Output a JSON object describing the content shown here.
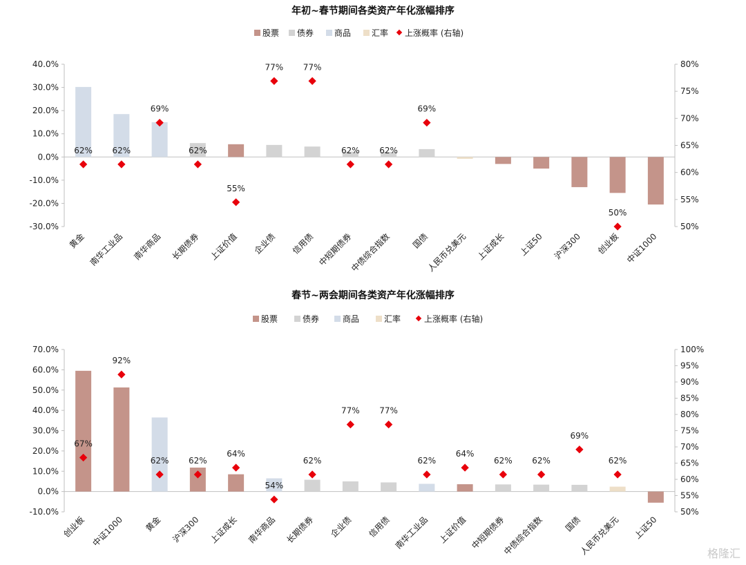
{
  "colors": {
    "股票": "#c4948a",
    "债券": "#d3d3d3",
    "商品": "#d3dce8",
    "汇率": "#eedfc8",
    "概率": "#e8000b"
  },
  "watermark": "格隆汇",
  "chart_data": [
    {
      "type": "bar",
      "title": "年初~春节期间各类资产年化涨幅排序",
      "legend": {
        "placement": "top",
        "items": [
          {
            "name": "股票",
            "kind": "bar"
          },
          {
            "name": "债券",
            "kind": "bar"
          },
          {
            "name": "商品",
            "kind": "bar"
          },
          {
            "name": "汇率",
            "kind": "bar"
          },
          {
            "name": "上涨概率 (右轴)",
            "kind": "point"
          }
        ]
      },
      "categories": [
        "黄金",
        "南华工业品",
        "南华商品",
        "长期债券",
        "上证价值",
        "企业债",
        "信用债",
        "中短期债券",
        "中债综合指数",
        "国债",
        "人民币兑美元",
        "上证成长",
        "上证50",
        "沪深300",
        "创业板",
        "中证1000"
      ],
      "asset_class": [
        "商品",
        "商品",
        "商品",
        "债券",
        "股票",
        "债券",
        "债券",
        "债券",
        "债券",
        "债券",
        "汇率",
        "股票",
        "股票",
        "股票",
        "股票",
        "股票"
      ],
      "values": [
        30.2,
        18.5,
        15.0,
        6.0,
        5.5,
        5.2,
        4.5,
        2.3,
        2.2,
        3.4,
        -0.8,
        -3.0,
        -5.0,
        -13.0,
        -15.5,
        -20.5
      ],
      "prob": [
        62,
        62,
        69,
        62,
        55,
        77,
        77,
        62,
        62,
        69,
        null,
        null,
        null,
        null,
        50,
        null
      ],
      "prob_labels": [
        "62%",
        "62%",
        "69%",
        "62%",
        "55%",
        "77%",
        "77%",
        "62%",
        "62%",
        "69%",
        "",
        "",
        "",
        "",
        "50%",
        ""
      ],
      "prob_plot": [
        61.5,
        61.5,
        69.2,
        61.5,
        54.5,
        76.9,
        76.9,
        61.5,
        61.5,
        69.2,
        null,
        null,
        null,
        null,
        50.0,
        null
      ],
      "y_left": {
        "min": -30,
        "max": 40,
        "step": 10,
        "ticks": [
          "-30.0%",
          "-20.0%",
          "-10.0%",
          "0.0%",
          "10.0%",
          "20.0%",
          "30.0%",
          "40.0%"
        ]
      },
      "y_right": {
        "min": 50,
        "max": 80,
        "step": 5,
        "ticks": [
          "50%",
          "55%",
          "60%",
          "65%",
          "70%",
          "75%",
          "80%"
        ]
      },
      "grid": false
    },
    {
      "type": "bar",
      "title": "春节~两会期间各类资产年化涨幅排序",
      "legend": {
        "placement": "top",
        "items": [
          {
            "name": "股票",
            "kind": "bar"
          },
          {
            "name": "债券",
            "kind": "bar"
          },
          {
            "name": "商品",
            "kind": "bar"
          },
          {
            "name": "汇率",
            "kind": "bar"
          },
          {
            "name": "上涨概率 (右轴)",
            "kind": "point"
          }
        ]
      },
      "categories": [
        "创业板",
        "中证1000",
        "黄金",
        "沪深300",
        "上证成长",
        "南华商品",
        "长期债券",
        "企业债",
        "信用债",
        "南华工业品",
        "上证价值",
        "中短期债券",
        "中债综合指数",
        "国债",
        "人民币兑美元",
        "上证50"
      ],
      "asset_class": [
        "股票",
        "股票",
        "商品",
        "股票",
        "股票",
        "商品",
        "债券",
        "债券",
        "债券",
        "商品",
        "股票",
        "债券",
        "债券",
        "债券",
        "汇率",
        "股票"
      ],
      "values": [
        59.5,
        51.3,
        36.5,
        11.8,
        8.5,
        6.5,
        5.8,
        5.0,
        4.5,
        3.8,
        3.6,
        3.5,
        3.4,
        3.3,
        2.4,
        -5.5
      ],
      "prob": [
        67,
        92,
        62,
        62,
        64,
        54,
        62,
        77,
        77,
        62,
        64,
        62,
        62,
        69,
        62,
        null
      ],
      "prob_labels": [
        "67%",
        "92%",
        "62%",
        "62%",
        "64%",
        "54%",
        "62%",
        "77%",
        "77%",
        "62%",
        "64%",
        "62%",
        "62%",
        "69%",
        "62%",
        ""
      ],
      "prob_plot": [
        66.7,
        92.3,
        61.5,
        61.5,
        63.6,
        53.8,
        61.5,
        76.9,
        76.9,
        61.5,
        63.6,
        61.5,
        61.5,
        69.2,
        61.5,
        null
      ],
      "y_left": {
        "min": -10,
        "max": 70,
        "step": 10,
        "ticks": [
          "-10.0%",
          "0.0%",
          "10.0%",
          "20.0%",
          "30.0%",
          "40.0%",
          "50.0%",
          "60.0%",
          "70.0%"
        ]
      },
      "y_right": {
        "min": 50,
        "max": 100,
        "step": 5,
        "ticks": [
          "50%",
          "55%",
          "60%",
          "65%",
          "70%",
          "75%",
          "80%",
          "85%",
          "90%",
          "95%",
          "100%"
        ]
      },
      "grid": false
    }
  ]
}
